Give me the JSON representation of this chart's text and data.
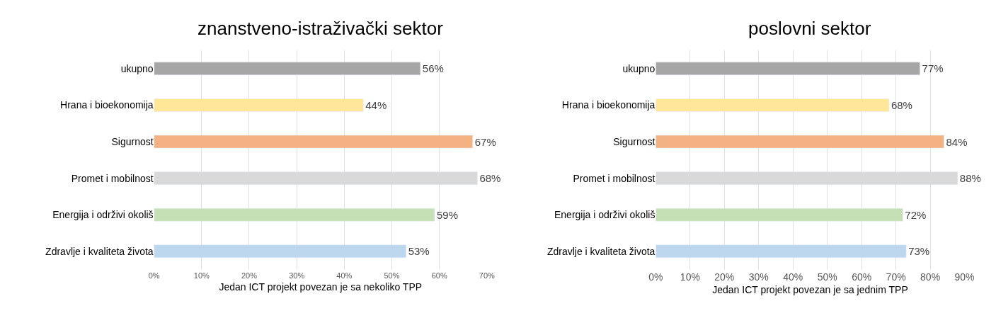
{
  "chart_data": [
    {
      "type": "bar",
      "orientation": "horizontal",
      "title": "znanstveno-istraživački sektor",
      "xlabel": "Jedan ICT projekt povezan je sa nekoliko TPP",
      "categories": [
        "ukupno",
        "Hrana i bioekonomija",
        "Sigurnost",
        "Promet i mobilnost",
        "Energija i održivi okoliš",
        "Zdravlje i kvaliteta života"
      ],
      "values": [
        56,
        44,
        67,
        68,
        59,
        53
      ],
      "value_labels": [
        "56%",
        "44%",
        "67%",
        "68%",
        "59%",
        "53%"
      ],
      "colors": [
        "#a6a6a6",
        "#ffe699",
        "#f4b183",
        "#d9d9d9",
        "#c5e0b4",
        "#bdd7ee"
      ],
      "xlim": [
        0,
        70
      ],
      "xticks": [
        {
          "value": 0,
          "label": "0%"
        },
        {
          "value": 10,
          "label": "10%"
        },
        {
          "value": 20,
          "label": "20%"
        },
        {
          "value": 30,
          "label": "30%"
        },
        {
          "value": 40,
          "label": "40%"
        },
        {
          "value": 50,
          "label": "50%"
        },
        {
          "value": 60,
          "label": "60%"
        },
        {
          "value": 70,
          "label": "70%"
        }
      ],
      "grid": "x",
      "legend": false
    },
    {
      "type": "bar",
      "orientation": "horizontal",
      "title": "poslovni sektor",
      "xlabel": "Jedan ICT projekt povezan je sa jednim TPP",
      "categories": [
        "ukupno",
        "Hrana i bioekonomija",
        "Sigurnost",
        "Promet i mobilnost",
        "Energija i održivi okoliš",
        "Zdravlje i kvaliteta života"
      ],
      "values": [
        77,
        68,
        84,
        88,
        72,
        73
      ],
      "value_labels": [
        "77%",
        "68%",
        "84%",
        "88%",
        "72%",
        "73%"
      ],
      "colors": [
        "#a6a6a6",
        "#ffe699",
        "#f4b183",
        "#d9d9d9",
        "#c5e0b4",
        "#bdd7ee"
      ],
      "xlim": [
        0,
        90
      ],
      "xticks": [
        {
          "value": 0,
          "label": "0%"
        },
        {
          "value": 10,
          "label": "10%"
        },
        {
          "value": 20,
          "label": "20%"
        },
        {
          "value": 30,
          "label": "30%"
        },
        {
          "value": 40,
          "label": "40%"
        },
        {
          "value": 50,
          "label": "50%"
        },
        {
          "value": 60,
          "label": "60%"
        },
        {
          "value": 70,
          "label": "70%"
        },
        {
          "value": 80,
          "label": "80%"
        },
        {
          "value": 90,
          "label": "90%"
        }
      ],
      "grid": "x",
      "legend": false
    }
  ]
}
